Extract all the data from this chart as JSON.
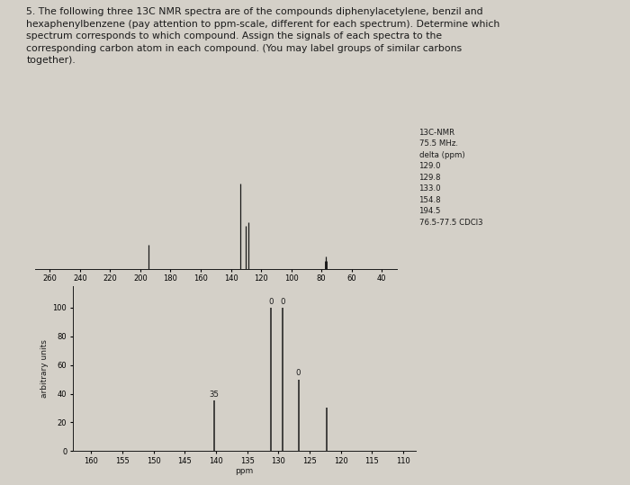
{
  "title_text": "5. The following three 13C NMR spectra are of the compounds diphenylacetylene, benzil and\nhexaphenylbenzene (pay attention to ppm-scale, different for each spectrum). Determine which\nspectrum corresponds to which compound. Assign the signals of each spectra to the\ncorresponding carbon atom in each compound. (You may label groups of similar carbons\ntogether).",
  "bg_color": "#d4d0c8",
  "panel1": {
    "xlim": [
      270,
      30
    ],
    "ylim": [
      0,
      1.1
    ],
    "peaks": [
      {
        "ppm": 194.5,
        "height": 0.28
      },
      {
        "ppm": 133.5,
        "height": 1.0
      },
      {
        "ppm": 130.0,
        "height": 0.5
      },
      {
        "ppm": 128.5,
        "height": 0.55
      },
      {
        "ppm": 77.0,
        "height": 0.15
      }
    ],
    "solvent_peaks": [
      {
        "ppm": 76.5,
        "height": 0.1
      },
      {
        "ppm": 77.5,
        "height": 0.1
      }
    ],
    "xticks": [
      260,
      240,
      220,
      200,
      180,
      160,
      140,
      120,
      100,
      80,
      60,
      40
    ],
    "nmr_annotation": "13C-NMR\n75.5 MHz.\ndelta (ppm)\n129.0\n129.8\n133.0\n154.8\n194.5\n76.5-77.5 CDCl3"
  },
  "panel2": {
    "xlim": [
      163,
      108
    ],
    "ylim": [
      0,
      115
    ],
    "peaks": [
      {
        "ppm": 140.3,
        "height": 35,
        "label": "35"
      },
      {
        "ppm": 131.2,
        "height": 100,
        "label": "0"
      },
      {
        "ppm": 129.3,
        "height": 100,
        "label": "0"
      },
      {
        "ppm": 126.8,
        "height": 50,
        "label": "0"
      },
      {
        "ppm": 122.3,
        "height": 30,
        "label": null
      }
    ],
    "yticks": [
      0,
      20,
      40,
      60,
      80,
      100
    ],
    "xticks": [
      160,
      155,
      150,
      145,
      140,
      135,
      130,
      125,
      120,
      115,
      110
    ],
    "ylabel": "arbitrary units",
    "xlabel": "ppm"
  },
  "line_color": "#1a1a1a",
  "text_color": "#1a1a1a",
  "font_size_title": 7.8,
  "font_size_annot": 6.2,
  "font_size_axis": 6.5,
  "font_size_tick": 6.0
}
